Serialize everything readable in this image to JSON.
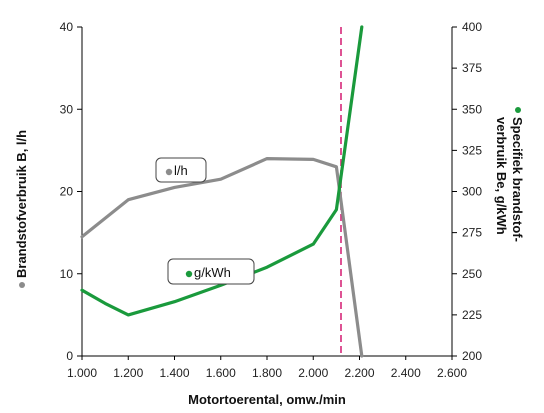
{
  "chart_data": {
    "type": "line",
    "xlabel": "Motortoerental, omw./min",
    "ylabel_left": "Brandstofverbruik B, l/h",
    "ylabel_right_line1": "Specifiek brandstof-",
    "ylabel_right_line2": "verbruik Be, g/kWh",
    "x_ticks": [
      "1.000",
      "1.200",
      "1.400",
      "1.600",
      "1.800",
      "2.000",
      "2.200",
      "2.400",
      "2.600"
    ],
    "y_left_ticks": [
      "0",
      "10",
      "20",
      "30",
      "40"
    ],
    "y_right_ticks": [
      "200",
      "225",
      "250",
      "275",
      "300",
      "325",
      "350",
      "375",
      "400"
    ],
    "xlim": [
      1000,
      2600
    ],
    "ylim_left": [
      0,
      40
    ],
    "ylim_right": [
      200,
      400
    ],
    "vertical_marker_x": 2120,
    "series": [
      {
        "name": "l/h",
        "axis": "left",
        "color": "#8c8c8c",
        "x": [
          1000,
          1200,
          1400,
          1600,
          1800,
          2000,
          2100,
          2210
        ],
        "y": [
          14.5,
          19,
          20.5,
          21.5,
          24,
          23.9,
          23,
          0
        ]
      },
      {
        "name": "g/kWh",
        "axis": "right",
        "color": "#1a9a3c",
        "x": [
          1000,
          1100,
          1200,
          1400,
          1600,
          1800,
          2000,
          2100,
          2210
        ],
        "y": [
          240,
          232,
          225,
          233,
          243,
          254,
          268,
          289,
          400
        ]
      }
    ],
    "legend_callouts": [
      {
        "label": "l/h",
        "series": 0
      },
      {
        "label": "g/kWh",
        "series": 1
      }
    ]
  },
  "colors": {
    "grey_series": "#8c8c8c",
    "green_series": "#1a9a3c",
    "marker_line": "#d6287a"
  }
}
